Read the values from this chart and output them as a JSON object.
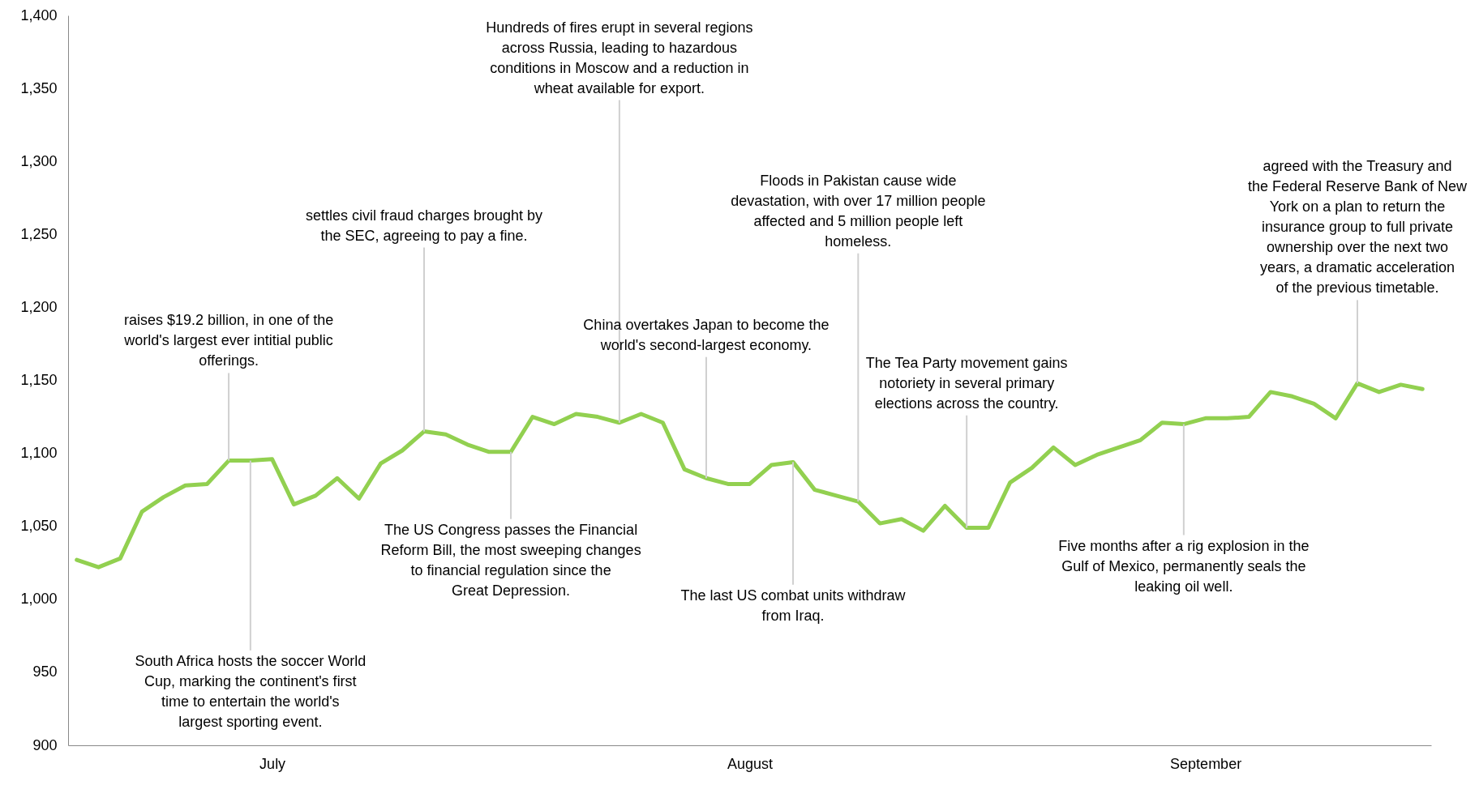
{
  "chart_data": {
    "type": "line",
    "categories": [
      null,
      null,
      null,
      null,
      null,
      null,
      null,
      null,
      null,
      "July",
      null,
      null,
      null,
      null,
      null,
      null,
      null,
      null,
      null,
      null,
      null,
      null,
      null,
      null,
      null,
      null,
      null,
      null,
      null,
      null,
      null,
      "August",
      null,
      null,
      null,
      null,
      null,
      null,
      null,
      null,
      null,
      null,
      null,
      null,
      null,
      null,
      null,
      null,
      null,
      null,
      null,
      null,
      "September",
      null,
      null,
      null,
      null,
      null,
      null,
      null,
      null,
      null,
      null
    ],
    "series": [
      {
        "color": "#92d050",
        "values": [
          1027,
          1022,
          1028,
          1060,
          1070,
          1078,
          1079,
          1095,
          1095,
          1096,
          1065,
          1071,
          1083,
          1069,
          1093,
          1102,
          1115,
          1113,
          1106,
          1101,
          1101,
          1125,
          1120,
          1127,
          1125,
          1121,
          1127,
          1121,
          1089,
          1083,
          1079,
          1079,
          1092,
          1094,
          1075,
          1071,
          1067,
          1052,
          1055,
          1047,
          1064,
          1049,
          1049,
          1080,
          1090,
          1104,
          1092,
          1099,
          1104,
          1109,
          1121,
          1120,
          1124,
          1124,
          1125,
          1142,
          1139,
          1134,
          1124,
          1148,
          1142,
          1147,
          1144
        ]
      }
    ],
    "ylim": [
      900,
      1400
    ],
    "yticks": [
      900,
      950,
      {
        "value": 1000,
        "label": "1,000"
      },
      {
        "value": 1050,
        "label": "1,050"
      },
      {
        "value": 1100,
        "label": "1,100"
      },
      {
        "value": 1150,
        "label": "1,150"
      },
      {
        "value": 1200,
        "label": "1,200"
      },
      {
        "value": 1250,
        "label": "1,250"
      },
      {
        "value": 1300,
        "label": "1,300"
      },
      {
        "value": 1350,
        "label": "1,350"
      },
      {
        "value": 1400,
        "label": "1,400"
      }
    ],
    "grid": false,
    "marker": "none",
    "line_style": "solid",
    "annotations": [
      {
        "text": "raises $19.2 billion, in one of the world's largest ever intitial public offerings.",
        "y": 1095
      },
      {
        "text": "South Africa hosts the soccer World Cup, marking the continent's first time to entertain the world's largest sporting event.",
        "y": 1095
      },
      {
        "text": "settles civil fraud charges brought by the SEC, agreeing to pay a fine.",
        "y": 1115
      },
      {
        "text": "The US Congress passes the Financial Reform Bill, the most sweeping changes to financial regulation since the Great Depression.",
        "y": 1101
      },
      {
        "text": "Hundreds of fires erupt in several regions across Russia, leading to hazardous conditions in Moscow and a reduction in wheat available for export.",
        "y": 1121
      },
      {
        "text": "China overtakes Japan to become the world's second-largest economy.",
        "y": 1083
      },
      {
        "text": "The last US combat units withdraw from Iraq.",
        "y": 1094
      },
      {
        "text": "Floods in Pakistan cause wide devastation, with over 17 million people affected and 5 million people left homeless.",
        "y": 1067
      },
      {
        "text": "The Tea Party movement gains notoriety in several primary elections across the country.",
        "y": 1049
      },
      {
        "text": "Five months after a rig explosion in the Gulf of Mexico, permanently seals the leaking oil well.",
        "y": 1120
      },
      {
        "text": "agreed with the Treasury and the Federal Reserve Bank of New York on a plan to return the insurance group to full private ownership over the next two years, a dramatic acceleration of the previous timetable.",
        "y": 1148
      }
    ]
  }
}
